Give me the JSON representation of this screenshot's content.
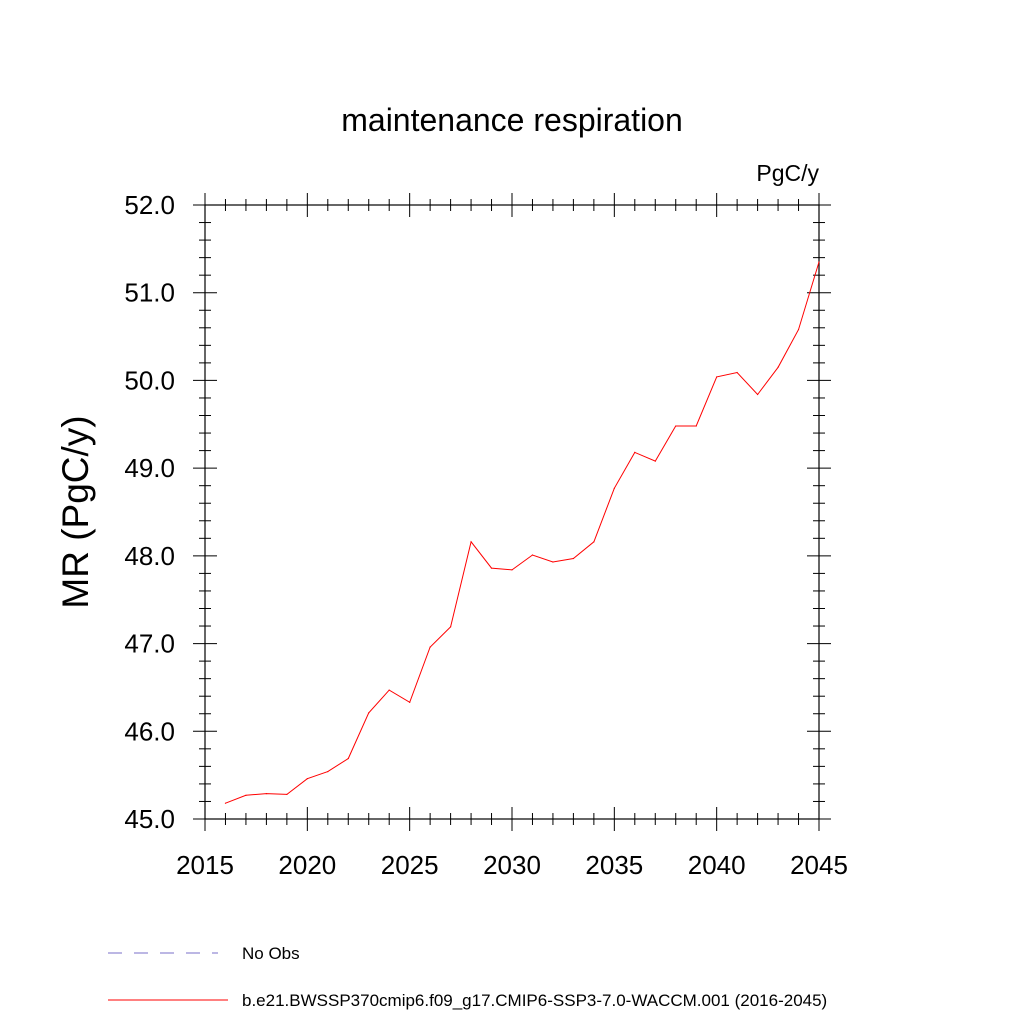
{
  "chart_data": {
    "type": "line",
    "title": "maintenance respiration",
    "units_label": "PgC/y",
    "xlabel": "",
    "ylabel": "MR  (PgC/y)",
    "xlim": [
      2015,
      2045
    ],
    "ylim": [
      45.0,
      52.0
    ],
    "x_ticks": [
      2015,
      2020,
      2025,
      2030,
      2035,
      2040,
      2045
    ],
    "y_ticks": [
      "45.0",
      "46.0",
      "47.0",
      "48.0",
      "49.0",
      "50.0",
      "51.0",
      "52.0"
    ],
    "grid": false,
    "series": [
      {
        "name": "b.e21.BWSSP370cmip6.f09_g17.CMIP6-SSP3-7.0-WACCM.001 (2016-2045)",
        "color": "#ff0000",
        "x": [
          2016,
          2017,
          2018,
          2019,
          2020,
          2021,
          2022,
          2023,
          2024,
          2025,
          2026,
          2027,
          2028,
          2029,
          2030,
          2031,
          2032,
          2033,
          2034,
          2035,
          2036,
          2037,
          2038,
          2039,
          2040,
          2041,
          2042,
          2043,
          2044,
          2045
        ],
        "values": [
          45.18,
          45.27,
          45.29,
          45.28,
          45.46,
          45.54,
          45.69,
          46.21,
          46.47,
          46.33,
          46.96,
          47.19,
          48.16,
          47.86,
          47.84,
          48.01,
          47.93,
          47.97,
          48.16,
          48.77,
          49.18,
          49.08,
          49.48,
          49.48,
          50.04,
          50.09,
          49.84,
          50.15,
          50.58,
          51.35
        ]
      }
    ],
    "legend": [
      {
        "label": "No Obs",
        "style": "dashed",
        "color": "#7a6fc8"
      },
      {
        "label": "b.e21.BWSSP370cmip6.f09_g17.CMIP6-SSP3-7.0-WACCM.001 (2016-2045)",
        "style": "solid",
        "color": "#ff0000"
      }
    ]
  }
}
